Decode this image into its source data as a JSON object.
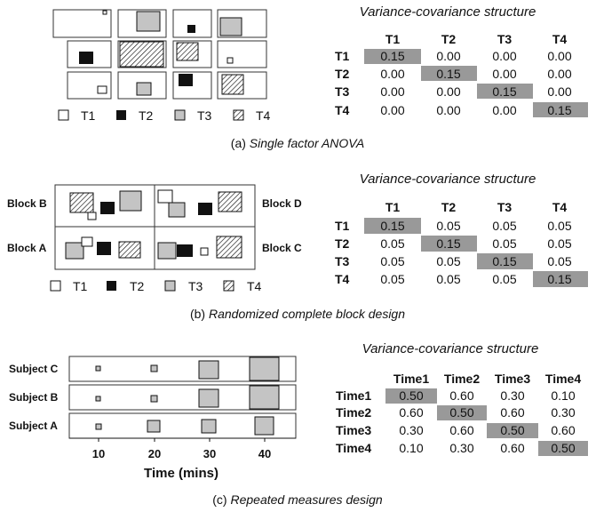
{
  "panels": [
    {
      "caption_prefix": "(a) ",
      "caption_name": "Single factor ANOVA",
      "legend": [
        "T1",
        "T2",
        "T3",
        "T4"
      ],
      "matrix": {
        "title": "Variance-covariance structure",
        "headers": [
          "T1",
          "T2",
          "T3",
          "T4"
        ],
        "rows": [
          {
            "label": "T1",
            "cells": [
              "0.15",
              "0.00",
              "0.00",
              "0.00"
            ]
          },
          {
            "label": "T2",
            "cells": [
              "0.00",
              "0.15",
              "0.00",
              "0.00"
            ]
          },
          {
            "label": "T3",
            "cells": [
              "0.00",
              "0.00",
              "0.15",
              "0.00"
            ]
          },
          {
            "label": "T4",
            "cells": [
              "0.00",
              "0.00",
              "0.00",
              "0.15"
            ]
          }
        ]
      }
    },
    {
      "caption_prefix": "(b) ",
      "caption_name": "Randomized complete block design",
      "legend": [
        "T1",
        "T2",
        "T3",
        "T4"
      ],
      "blocks": [
        "Block B",
        "Block D",
        "Block A",
        "Block C"
      ],
      "matrix": {
        "title": "Variance-covariance structure",
        "headers": [
          "T1",
          "T2",
          "T3",
          "T4"
        ],
        "rows": [
          {
            "label": "T1",
            "cells": [
              "0.15",
              "0.05",
              "0.05",
              "0.05"
            ]
          },
          {
            "label": "T2",
            "cells": [
              "0.05",
              "0.15",
              "0.05",
              "0.05"
            ]
          },
          {
            "label": "T3",
            "cells": [
              "0.05",
              "0.05",
              "0.15",
              "0.05"
            ]
          },
          {
            "label": "T4",
            "cells": [
              "0.05",
              "0.05",
              "0.05",
              "0.15"
            ]
          }
        ]
      }
    },
    {
      "caption_prefix": "(c) ",
      "caption_name": "Repeated measures design",
      "subjects": [
        "Subject C",
        "Subject B",
        "Subject A"
      ],
      "axis_ticks": [
        "10",
        "20",
        "30",
        "40"
      ],
      "axis_label": "Time (mins)",
      "matrix": {
        "title": "Variance-covariance structure",
        "headers": [
          "Time1",
          "Time2",
          "Time3",
          "Time4"
        ],
        "rows": [
          {
            "label": "Time1",
            "cells": [
              "0.50",
              "0.60",
              "0.30",
              "0.10"
            ]
          },
          {
            "label": "Time2",
            "cells": [
              "0.60",
              "0.50",
              "0.60",
              "0.30"
            ]
          },
          {
            "label": "Time3",
            "cells": [
              "0.30",
              "0.60",
              "0.50",
              "0.60"
            ]
          },
          {
            "label": "Time4",
            "cells": [
              "0.10",
              "0.30",
              "0.60",
              "0.50"
            ]
          }
        ]
      }
    }
  ],
  "colors": {
    "diagonal": "#999999",
    "t2_fill": "#111111",
    "t3_fill": "#c4c4c4"
  }
}
